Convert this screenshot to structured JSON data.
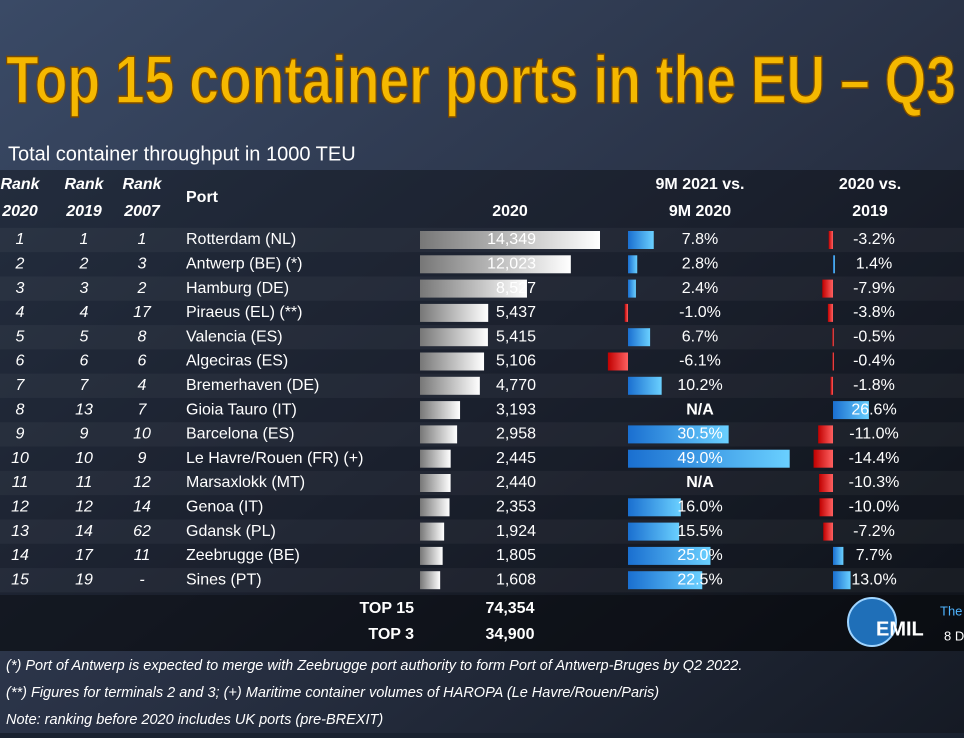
{
  "header": {
    "title": "Top 15 container ports in the EU – Q3",
    "subtitle": "Total container throughput in 1000 TEU"
  },
  "table": {
    "columns": {
      "rank2020": [
        "Rank",
        "2020"
      ],
      "rank2019": [
        "Rank",
        "2019"
      ],
      "rank2007": [
        "Rank",
        "2007"
      ],
      "port": "Port",
      "teu": "2020",
      "growth21": [
        "9M 2021 vs.",
        "9M 2020"
      ],
      "growth20": [
        "2020 vs.",
        "2019"
      ]
    },
    "rows": [
      {
        "rank2020": 1,
        "rank2019": 1,
        "rank2007": 1,
        "port": "Rotterdam (NL)",
        "teu": 14349,
        "teu_label": "14,349",
        "growth21": 7.8,
        "growth21_label": "7.8%",
        "growth20": -3.2,
        "growth20_label": "-3.2%"
      },
      {
        "rank2020": 2,
        "rank2019": 2,
        "rank2007": 3,
        "port": "Antwerp (BE) (*)",
        "teu": 12023,
        "teu_label": "12,023",
        "growth21": 2.8,
        "growth21_label": "2.8%",
        "growth20": 1.4,
        "growth20_label": "1.4%"
      },
      {
        "rank2020": 3,
        "rank2019": 3,
        "rank2007": 2,
        "port": "Hamburg (DE)",
        "teu": 8527,
        "teu_label": "8,527",
        "growth21": 2.4,
        "growth21_label": "2.4%",
        "growth20": -7.9,
        "growth20_label": "-7.9%"
      },
      {
        "rank2020": 4,
        "rank2019": 4,
        "rank2007": 17,
        "port": "Piraeus (EL) (**)",
        "teu": 5437,
        "teu_label": "5,437",
        "growth21": -1.0,
        "growth21_label": "-1.0%",
        "growth20": -3.8,
        "growth20_label": "-3.8%"
      },
      {
        "rank2020": 5,
        "rank2019": 5,
        "rank2007": 8,
        "port": "Valencia (ES)",
        "teu": 5415,
        "teu_label": "5,415",
        "growth21": 6.7,
        "growth21_label": "6.7%",
        "growth20": -0.5,
        "growth20_label": "-0.5%"
      },
      {
        "rank2020": 6,
        "rank2019": 6,
        "rank2007": 6,
        "port": "Algeciras (ES)",
        "teu": 5106,
        "teu_label": "5,106",
        "growth21": -6.1,
        "growth21_label": "-6.1%",
        "growth20": -0.4,
        "growth20_label": "-0.4%"
      },
      {
        "rank2020": 7,
        "rank2019": 7,
        "rank2007": 4,
        "port": "Bremerhaven (DE)",
        "teu": 4770,
        "teu_label": "4,770",
        "growth21": 10.2,
        "growth21_label": "10.2%",
        "growth20": -1.8,
        "growth20_label": "-1.8%"
      },
      {
        "rank2020": 8,
        "rank2019": 13,
        "rank2007": 7,
        "port": "Gioia Tauro (IT)",
        "teu": 3193,
        "teu_label": "3,193",
        "growth21": null,
        "growth21_label": "N/A",
        "growth20": 26.6,
        "growth20_label": "26.6%"
      },
      {
        "rank2020": 9,
        "rank2019": 9,
        "rank2007": 10,
        "port": "Barcelona (ES)",
        "teu": 2958,
        "teu_label": "2,958",
        "growth21": 30.5,
        "growth21_label": "30.5%",
        "growth20": -11.0,
        "growth20_label": "-11.0%"
      },
      {
        "rank2020": 10,
        "rank2019": 10,
        "rank2007": 9,
        "port": "Le Havre/Rouen (FR) (+)",
        "teu": 2445,
        "teu_label": "2,445",
        "growth21": 49.0,
        "growth21_label": "49.0%",
        "growth20": -14.4,
        "growth20_label": "-14.4%"
      },
      {
        "rank2020": 11,
        "rank2019": 11,
        "rank2007": 12,
        "port": "Marsaxlokk (MT)",
        "teu": 2440,
        "teu_label": "2,440",
        "growth21": null,
        "growth21_label": "N/A",
        "growth20": -10.3,
        "growth20_label": "-10.3%"
      },
      {
        "rank2020": 12,
        "rank2019": 12,
        "rank2007": 14,
        "port": "Genoa (IT)",
        "teu": 2353,
        "teu_label": "2,353",
        "growth21": 16.0,
        "growth21_label": "16.0%",
        "growth20": -10.0,
        "growth20_label": "-10.0%"
      },
      {
        "rank2020": 13,
        "rank2019": 14,
        "rank2007": 62,
        "port": "Gdansk (PL)",
        "teu": 1924,
        "teu_label": "1,924",
        "growth21": 15.5,
        "growth21_label": "15.5%",
        "growth20": -7.2,
        "growth20_label": "-7.2%"
      },
      {
        "rank2020": 14,
        "rank2019": 17,
        "rank2007": 11,
        "port": "Zeebrugge (BE)",
        "teu": 1805,
        "teu_label": "1,805",
        "growth21": 25.0,
        "growth21_label": "25.0%",
        "growth20": 7.7,
        "growth20_label": "7.7%"
      },
      {
        "rank2020": 15,
        "rank2019": 19,
        "rank2007": "-",
        "port": "Sines (PT)",
        "teu": 1608,
        "teu_label": "1,608",
        "growth21": 22.5,
        "growth21_label": "22.5%",
        "growth20": 13.0,
        "growth20_label": "13.0%"
      }
    ],
    "totals": [
      {
        "label": "TOP 15",
        "value": "74,354"
      },
      {
        "label": "TOP 3",
        "value": "34,900"
      }
    ]
  },
  "logo": {
    "text": "EMIL",
    "side": [
      "The",
      "8 D"
    ]
  },
  "notes": [
    "(*) Port of Antwerp is expected to merge with Zeebrugge port authority to form Port of Antwerp-Bruges by Q2 2022.",
    "(**) Figures for terminals 2 and 3; (+) Maritime container volumes of HAROPA (Le Havre/Rouen/Paris)",
    "Note: ranking before 2020 includes UK ports (pre-BREXIT)"
  ]
}
